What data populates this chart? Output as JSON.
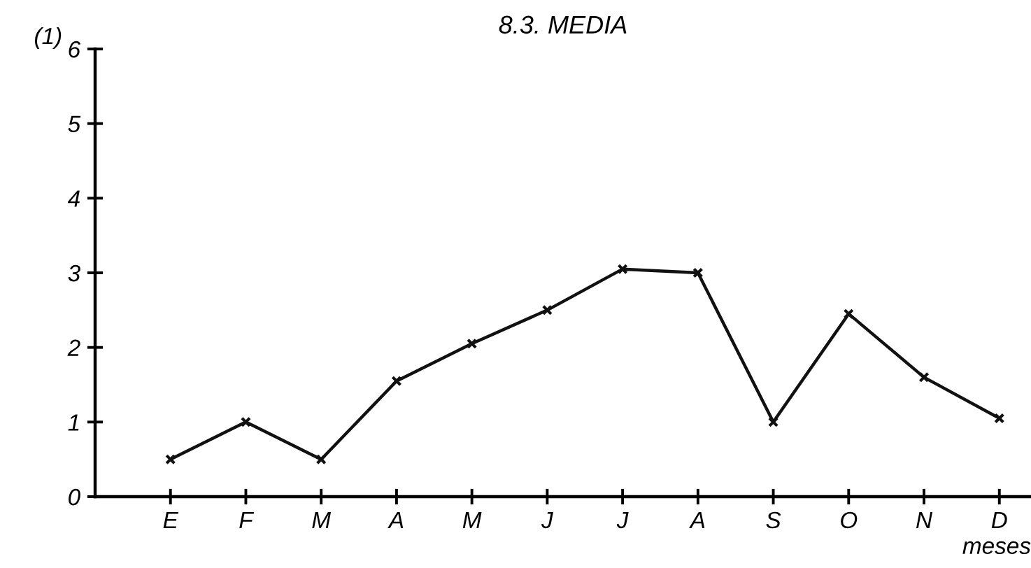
{
  "chart_data": {
    "type": "line",
    "title": "8.3. MEDIA",
    "ylabel": "(1)",
    "xlabel": "meses",
    "categories": [
      "E",
      "F",
      "M",
      "A",
      "M",
      "J",
      "J",
      "A",
      "S",
      "O",
      "N",
      "D"
    ],
    "values": [
      0.5,
      1.0,
      0.5,
      1.55,
      2.05,
      2.5,
      3.05,
      3.0,
      1.0,
      2.45,
      1.6,
      1.05
    ],
    "color": "#111111",
    "marker": "cross",
    "line_style": "solid",
    "ylim": [
      0,
      6
    ],
    "yticks": [
      0,
      1,
      2,
      3,
      4,
      5,
      6
    ],
    "grid": false,
    "legend": false
  }
}
